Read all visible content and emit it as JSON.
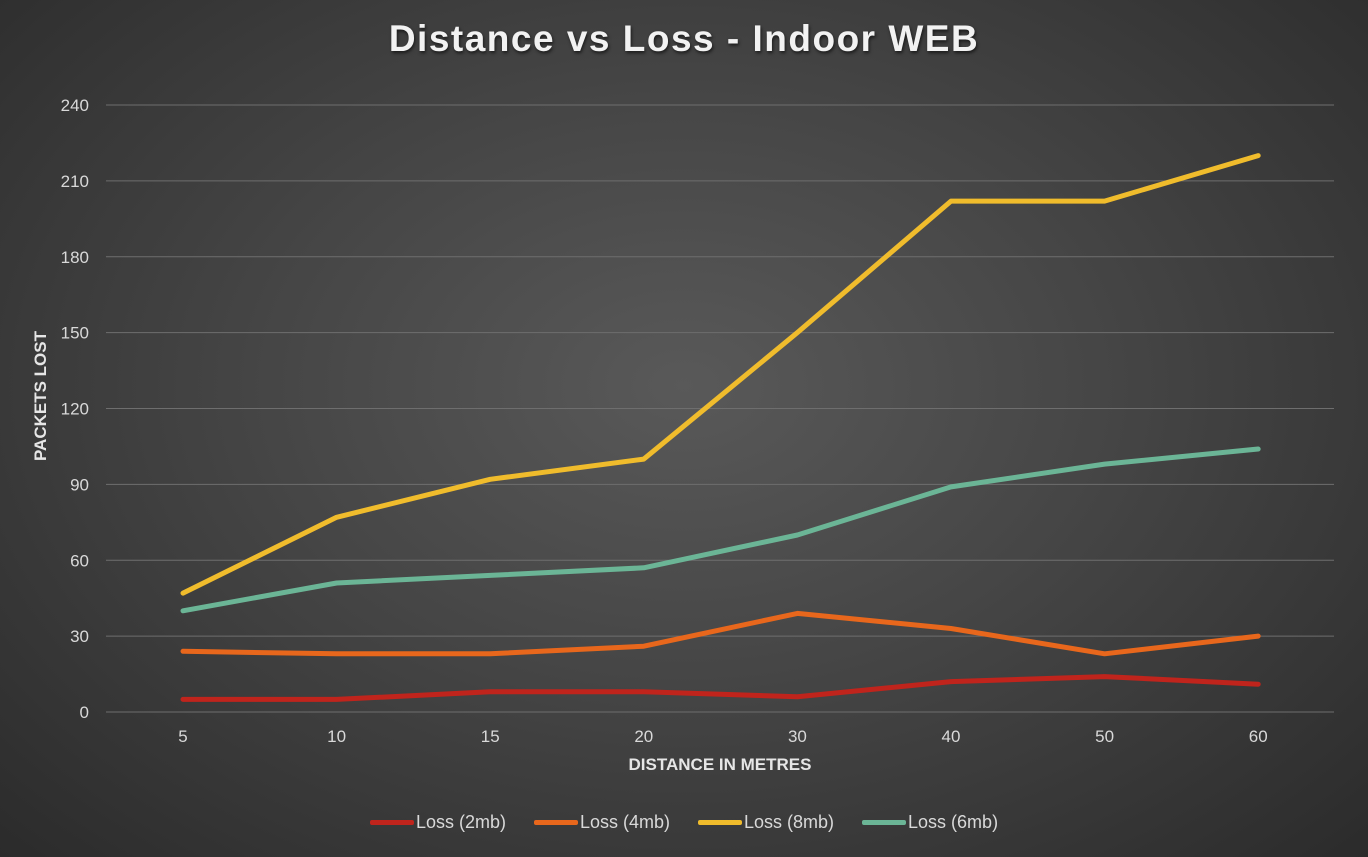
{
  "chart_data": {
    "type": "line",
    "title": "Distance vs Loss - Indoor WEB",
    "xlabel": "DISTANCE IN METRES",
    "ylabel": "PACKETS LOST",
    "categories": [
      "5",
      "10",
      "15",
      "20",
      "30",
      "40",
      "50",
      "60"
    ],
    "ylim": [
      0,
      240
    ],
    "yticks": [
      "0",
      "30",
      "60",
      "90",
      "120",
      "150",
      "180",
      "210",
      "240"
    ],
    "grid": true,
    "legend_position": "bottom",
    "series": [
      {
        "name": "Loss (2mb)",
        "color": "#c0241c",
        "values": [
          5,
          5,
          8,
          8,
          6,
          12,
          14,
          11
        ]
      },
      {
        "name": "Loss (4mb)",
        "color": "#e8671c",
        "values": [
          24,
          23,
          23,
          26,
          39,
          33,
          23,
          30
        ]
      },
      {
        "name": "Loss (8mb)",
        "color": "#f0bc2c",
        "values": [
          47,
          77,
          92,
          100,
          150,
          202,
          202,
          220
        ]
      },
      {
        "name": "Loss (6mb)",
        "color": "#6bb596",
        "values": [
          40,
          51,
          54,
          57,
          70,
          89,
          98,
          104
        ]
      }
    ]
  }
}
